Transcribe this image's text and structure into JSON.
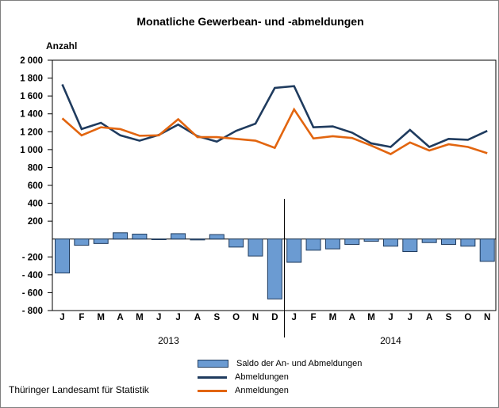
{
  "header": {
    "title": "Monatliche Gewerbean- und -abmeldungen"
  },
  "footer": {
    "source": "Thüringer Landesamt für Statistik"
  },
  "legend": [
    {
      "type": "bar",
      "label": "Saldo der An- und Abmeldungen"
    },
    {
      "type": "line",
      "label": "Abmeldungen"
    },
    {
      "type": "line",
      "label": "Anmeldungen"
    }
  ],
  "colors": {
    "bar_fill": "#6b9bd2",
    "bar_border": "#1f3b5e",
    "abmeldungen_line": "#1f3b5e",
    "anmeldungen_line": "#e2650f",
    "axis": "#000000"
  },
  "chart_data": {
    "type": "combo bar+line",
    "y_axis_title": "Anzahl",
    "ylim": [
      -800,
      2000
    ],
    "ytick_step": 200,
    "grid": false,
    "legend_position": "bottom",
    "y_tick_labels": [
      {
        "value": 2000,
        "label": "2 000"
      },
      {
        "value": 1800,
        "label": "1 800"
      },
      {
        "value": 1600,
        "label": "1 600"
      },
      {
        "value": 1400,
        "label": "1 400"
      },
      {
        "value": 1200,
        "label": "1 200"
      },
      {
        "value": 1000,
        "label": "1 000"
      },
      {
        "value": 800,
        "label": "800"
      },
      {
        "value": 600,
        "label": "600"
      },
      {
        "value": 400,
        "label": "400"
      },
      {
        "value": 200,
        "label": "200"
      },
      {
        "value": -200,
        "label": "- 200"
      },
      {
        "value": -400,
        "label": "- 400"
      },
      {
        "value": -600,
        "label": "- 600"
      },
      {
        "value": -800,
        "label": "- 800"
      }
    ],
    "month_labels": [
      "J",
      "F",
      "M",
      "A",
      "M",
      "J",
      "J",
      "A",
      "S",
      "O",
      "N",
      "D",
      "J",
      "F",
      "M",
      "A",
      "M",
      "J",
      "J",
      "A",
      "S",
      "O",
      "N"
    ],
    "year_groups": [
      {
        "label": "2013",
        "from_index": 0,
        "to_index": 11
      },
      {
        "label": "2014",
        "from_index": 12,
        "to_index": 22
      }
    ],
    "series": [
      {
        "name": "Saldo der An- und Abmeldungen",
        "type": "bar",
        "values": [
          -380,
          -70,
          -50,
          70,
          55,
          -5,
          60,
          -10,
          50,
          -90,
          -190,
          -670,
          -260,
          -125,
          -110,
          -60,
          -25,
          -80,
          -140,
          -40,
          -60,
          -80,
          -250
        ]
      },
      {
        "name": "Abmeldungen",
        "type": "line",
        "values": [
          1730,
          1230,
          1300,
          1160,
          1100,
          1165,
          1280,
          1150,
          1090,
          1210,
          1290,
          1690,
          1710,
          1250,
          1260,
          1190,
          1070,
          1030,
          1220,
          1030,
          1120,
          1110,
          1210
        ]
      },
      {
        "name": "Anmeldungen",
        "type": "line",
        "values": [
          1350,
          1160,
          1250,
          1230,
          1155,
          1160,
          1340,
          1140,
          1140,
          1120,
          1100,
          1020,
          1450,
          1125,
          1150,
          1130,
          1045,
          950,
          1080,
          990,
          1060,
          1030,
          960
        ]
      }
    ]
  }
}
